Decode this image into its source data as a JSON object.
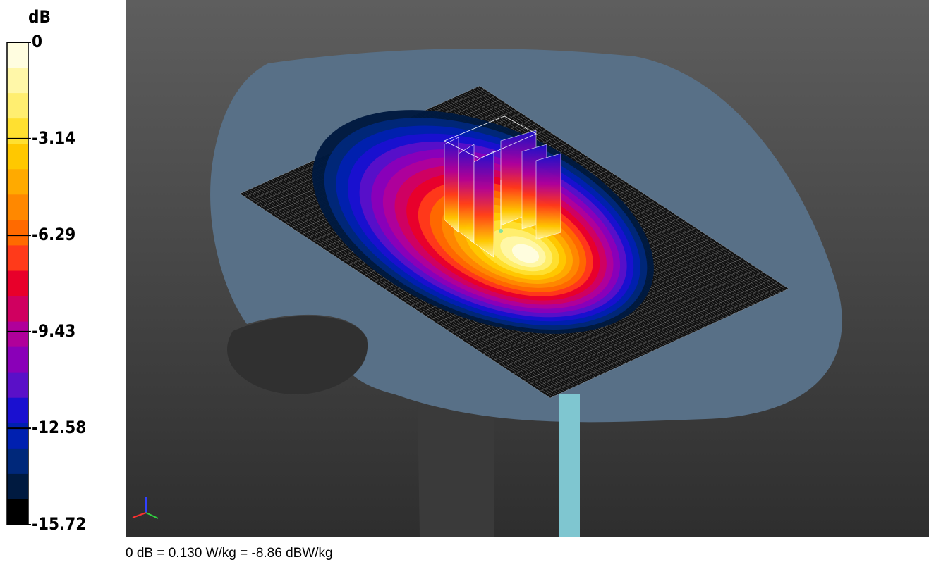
{
  "colorbar": {
    "title": "dB",
    "lim": [
      -15.72,
      0
    ],
    "ticks": [
      0,
      -3.14,
      -6.29,
      -9.43,
      -12.58,
      -15.72
    ],
    "colors": [
      "#fffde0",
      "#fff7a8",
      "#ffee70",
      "#ffe030",
      "#ffc800",
      "#ffaa00",
      "#ff8800",
      "#ff6a00",
      "#ff3a1a",
      "#e8002a",
      "#d00060",
      "#b0009a",
      "#8a00b8",
      "#5a10c8",
      "#1a10d0",
      "#0020b0",
      "#00287a",
      "#001a40",
      "#000000"
    ]
  },
  "caption": "0 dB = 0.130 W/kg = -8.86 dBW/kg"
}
